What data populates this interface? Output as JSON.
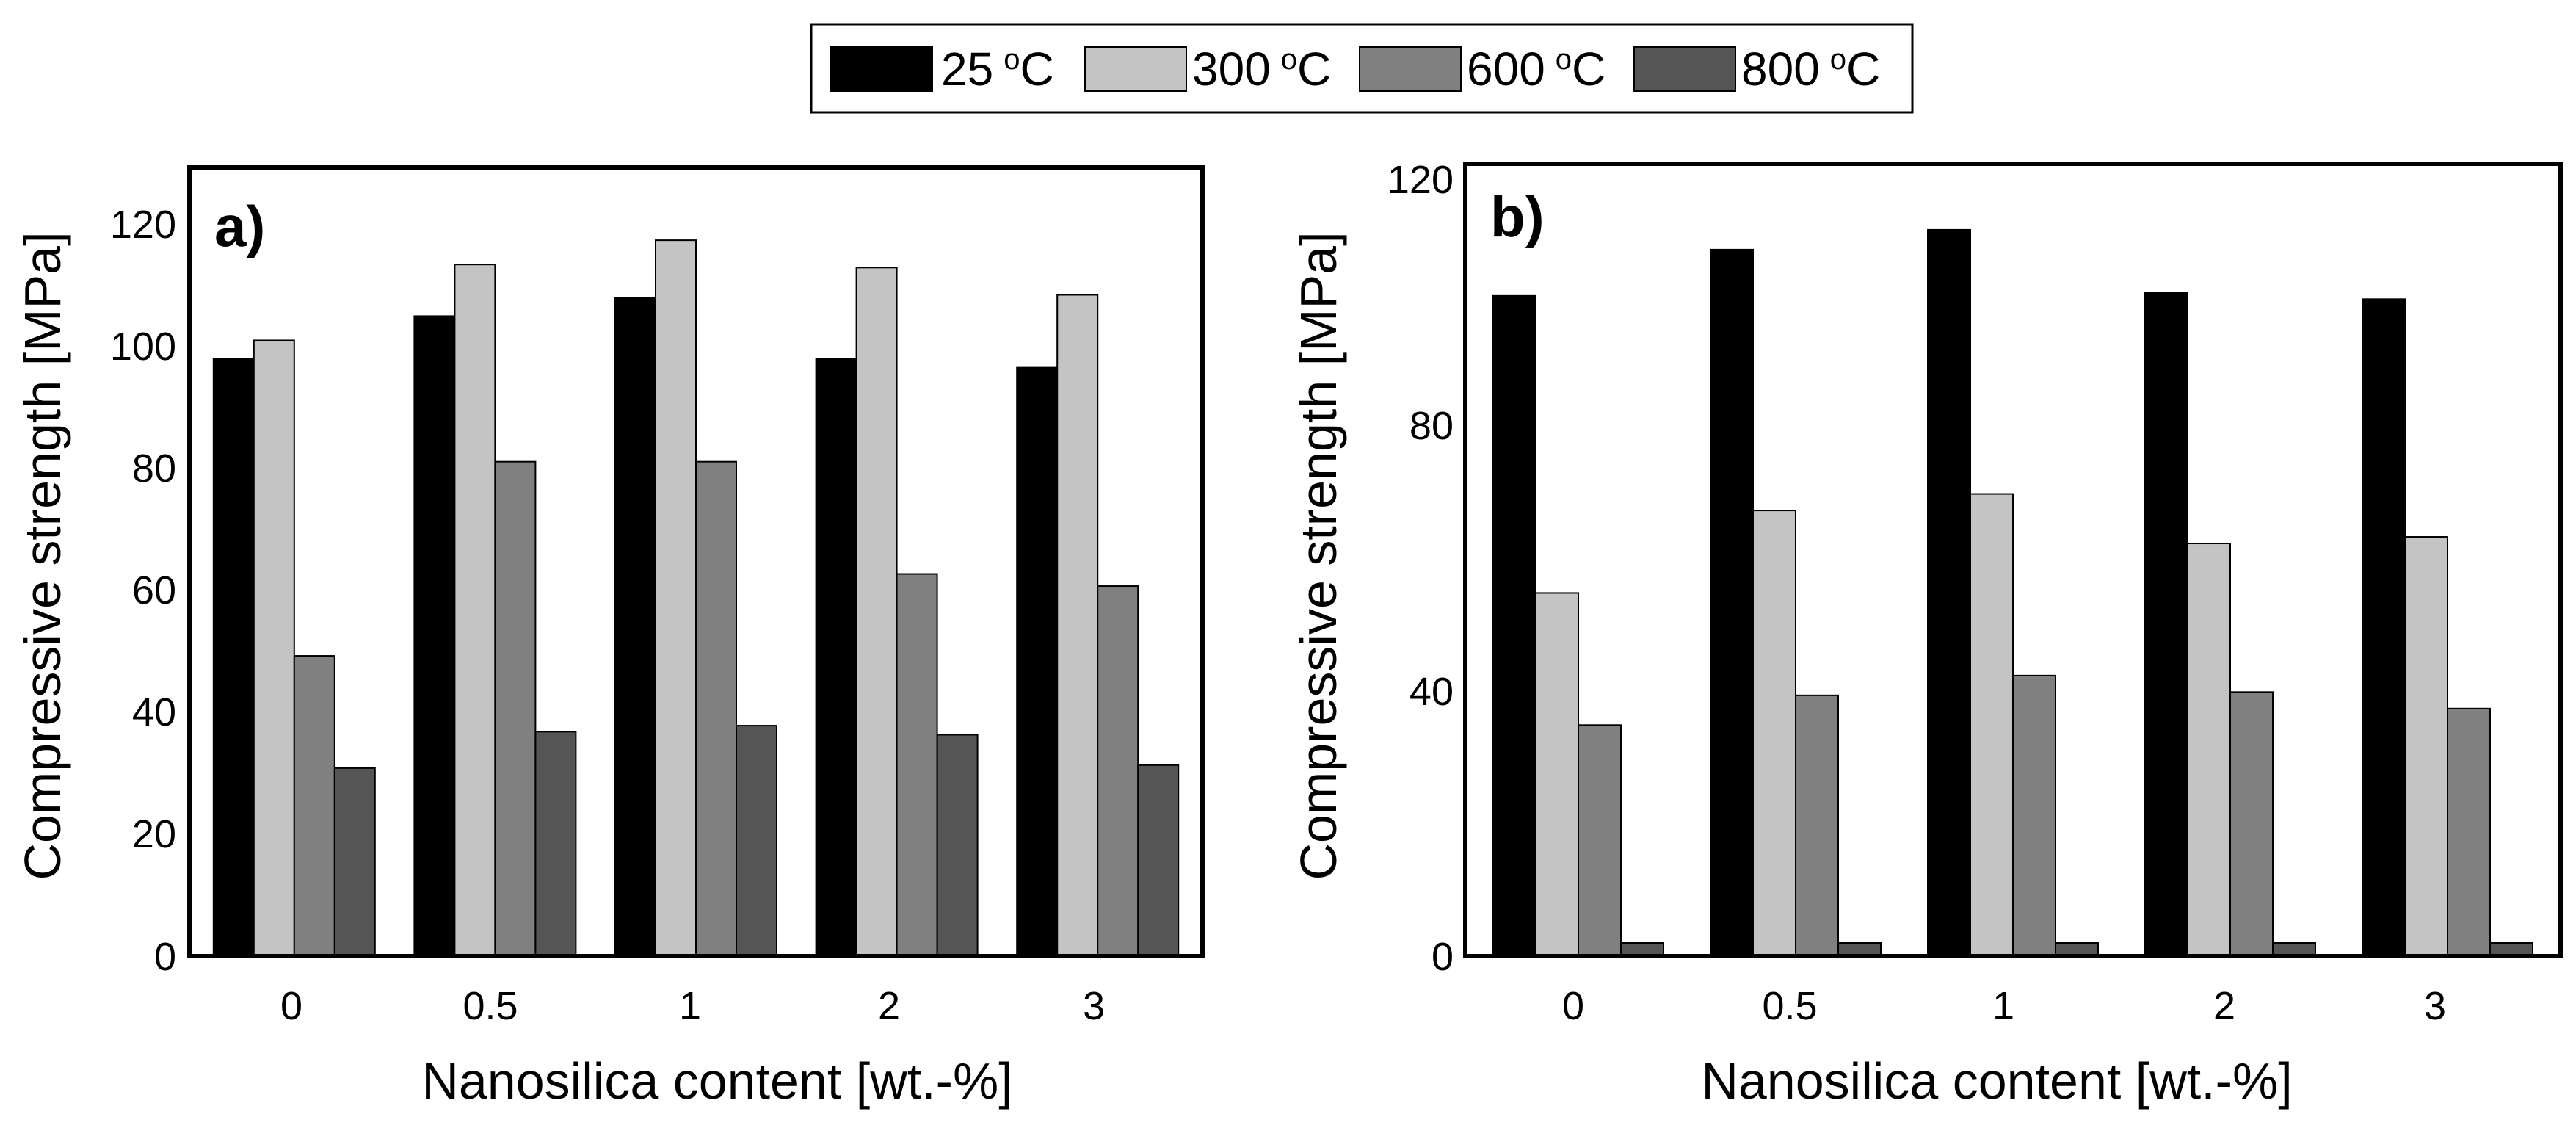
{
  "legend": [
    {
      "deg": "25",
      "unit": "C",
      "color": "#000000"
    },
    {
      "deg": "300",
      "unit": "C",
      "color": "#c4c4c4"
    },
    {
      "deg": "600",
      "unit": "C",
      "color": "#808080"
    },
    {
      "deg": "800",
      "unit": "C",
      "color": "#555555"
    }
  ],
  "degree_mark": "o",
  "chart_data": [
    {
      "type": "bar",
      "panel_label": "a)",
      "xlabel": "Nanosilica content [wt.-%]",
      "ylabel": "Compressive strength [MPa]",
      "ylim": [
        0,
        130
      ],
      "yticks": [
        "0",
        "20",
        "40",
        "60",
        "80",
        "100",
        "120"
      ],
      "categories": [
        "0",
        "0.5",
        "1",
        "2",
        "3"
      ],
      "series": [
        {
          "name": "25 oC",
          "values": [
            98.5,
            105.5,
            108.5,
            98.5,
            97
          ]
        },
        {
          "name": "300 oC",
          "values": [
            101.5,
            114,
            118,
            113.5,
            109
          ]
        },
        {
          "name": "600 oC",
          "values": [
            49.5,
            81.5,
            81.5,
            63,
            61
          ]
        },
        {
          "name": "800 oC",
          "values": [
            31,
            37,
            38,
            36.5,
            31.5
          ]
        }
      ]
    },
    {
      "type": "bar",
      "panel_label": "b)",
      "xlabel": "Nanosilica content [wt.-%]",
      "ylabel": "Compressive strength [MPa]",
      "ylim": [
        0,
        120
      ],
      "yticks": [
        "0",
        "40",
        "80",
        "120"
      ],
      "categories": [
        "0",
        "0.5",
        "1",
        "2",
        "3"
      ],
      "series": [
        {
          "name": "25 oC",
          "values": [
            100,
            107,
            110,
            100.5,
            99.5
          ]
        },
        {
          "name": "300 oC",
          "values": [
            55,
            67.5,
            70,
            62.5,
            63.5
          ]
        },
        {
          "name": "600 oC",
          "values": [
            35,
            39.5,
            42.5,
            40,
            37.5
          ]
        },
        {
          "name": "800 oC",
          "values": [
            2,
            2,
            2,
            2,
            2
          ]
        }
      ]
    }
  ]
}
